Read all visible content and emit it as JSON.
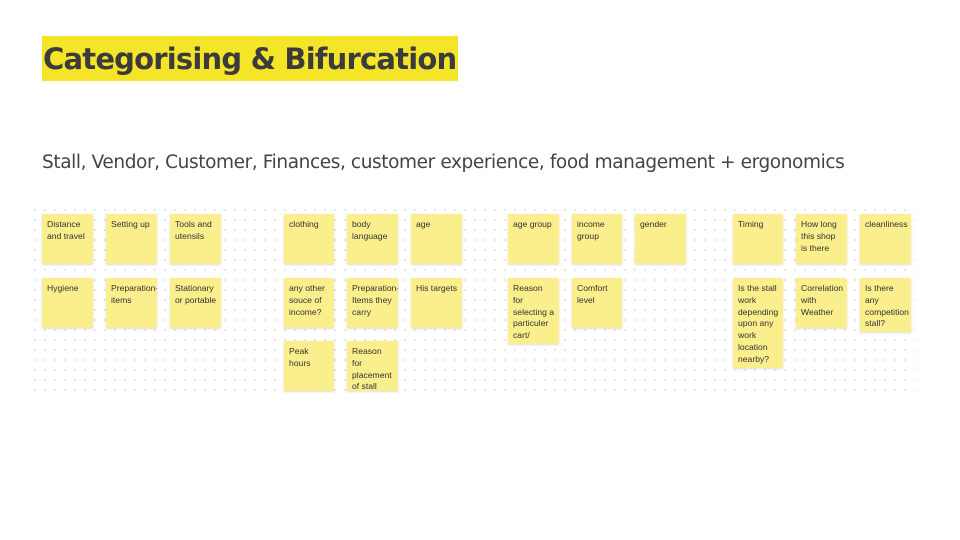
{
  "title": "Categorising & Bifurcation",
  "subtitle": "Stall, Vendor, Customer, Finances, customer experience, food management + ergonomics",
  "notes": [
    "Distance and travel",
    "Setting up",
    "Tools and utensils",
    "Hygiene",
    "Preparation-items",
    "Stationary or portable",
    "clothing",
    "body language",
    "age",
    "any other souce of income?",
    "Preparation-Items they carry",
    "His targets",
    "Peak hours",
    "Reason for placement of stall",
    "age group",
    "income group",
    "gender",
    "Reason for selecting a particuler cart/ vendor",
    "Comfort level",
    "Timing",
    "How long this shop is there",
    "cleanliness",
    "Is the stall work depending upon any work location nearby?",
    "Correlation with Weather",
    "Is there any competition stall?"
  ]
}
